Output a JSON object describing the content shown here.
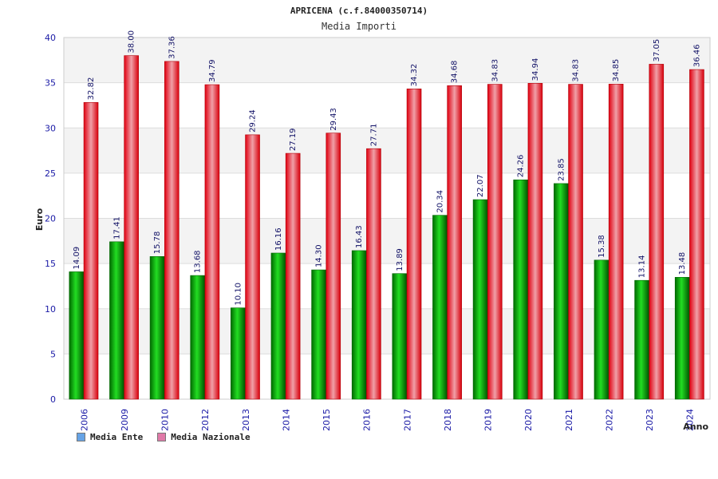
{
  "chart_data": {
    "type": "bar",
    "title": "APRICENA (c.f.84000350714)",
    "subtitle": "Media Importi",
    "ylabel": "Euro",
    "xlabel": "Anno",
    "ylim": [
      0,
      40
    ],
    "yticks": [
      0,
      5,
      10,
      15,
      20,
      25,
      30,
      35,
      40
    ],
    "grid": true,
    "legend_position": "bottom-left",
    "categories": [
      "2006",
      "2009",
      "2010",
      "2012",
      "2013",
      "2014",
      "2015",
      "2016",
      "2017",
      "2018",
      "2019",
      "2020",
      "2021",
      "2022",
      "2023",
      "2024"
    ],
    "series": [
      {
        "name": "Media Ente",
        "values": [
          14.09,
          17.41,
          15.78,
          13.68,
          10.1,
          16.16,
          14.3,
          16.43,
          13.89,
          20.34,
          22.07,
          24.26,
          23.85,
          15.38,
          13.14,
          13.48
        ],
        "labels": [
          "14.09",
          "17.41",
          "15.78",
          "13.68",
          "10.10",
          "16.16",
          "14.30",
          "16.43",
          "13.89",
          "20.34",
          "22.07",
          "24.26",
          "23.85",
          "15.38",
          "13.14",
          "13.48"
        ],
        "color": "#00a000",
        "legend_color": "#66a3e6"
      },
      {
        "name": "Media Nazionale",
        "values": [
          32.82,
          38.0,
          37.36,
          34.79,
          29.24,
          27.19,
          29.43,
          27.71,
          34.32,
          34.68,
          34.83,
          34.94,
          34.83,
          34.85,
          37.05,
          36.46
        ],
        "labels": [
          "32.82",
          "38.00",
          "37.36",
          "34.79",
          "29.24",
          "27.19",
          "29.43",
          "27.71",
          "34.32",
          "34.68",
          "34.83",
          "34.94",
          "34.83",
          "34.85",
          "37.05",
          "36.46"
        ],
        "color": "#e00010",
        "legend_color": "#e07aa8"
      }
    ]
  }
}
